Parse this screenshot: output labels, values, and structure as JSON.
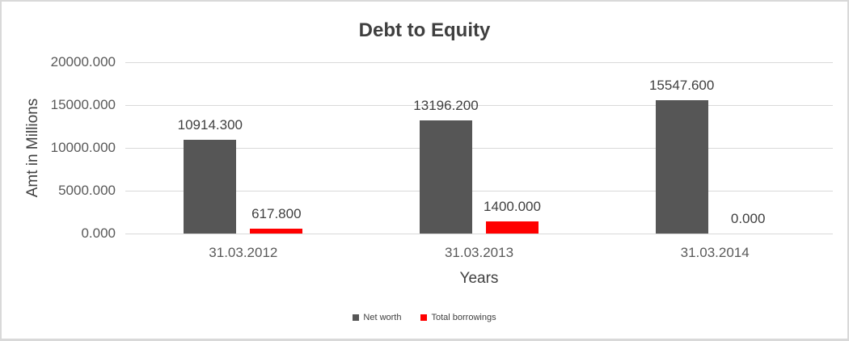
{
  "window": {
    "background_color": "#ffffff",
    "frame_border_color": "#d9d9d9"
  },
  "chart_data": {
    "type": "bar",
    "title": "Debt to Equity",
    "xlabel": "Years",
    "ylabel": "Amt in Millions",
    "categories": [
      "31.03.2012",
      "31.03.2013",
      "31.03.2014"
    ],
    "series": [
      {
        "name": "Net worth",
        "color": "#565656",
        "values": [
          10914.3,
          13196.2,
          15547.6
        ],
        "value_labels": [
          "10914.300",
          "13196.200",
          "15547.600"
        ]
      },
      {
        "name": "Total borrowings",
        "color": "#ff0000",
        "values": [
          617.8,
          1400.0,
          0.0
        ],
        "value_labels": [
          "617.800",
          "1400.000",
          "0.000"
        ]
      }
    ],
    "ylim": [
      0,
      20000
    ],
    "yticks": [
      {
        "value": 20000,
        "label": "20000.000"
      },
      {
        "value": 15000,
        "label": "15000.000"
      },
      {
        "value": 10000,
        "label": "10000.000"
      },
      {
        "value": 5000,
        "label": "5000.000"
      },
      {
        "value": 0,
        "label": "0.000"
      }
    ],
    "grid": true,
    "legend_position": "bottom",
    "colors": {
      "gridline": "#d9d9d9",
      "tick_text": "#595959",
      "title_text": "#3f3f3f",
      "axis_title_text": "#404040",
      "data_label_text": "#404040"
    }
  }
}
